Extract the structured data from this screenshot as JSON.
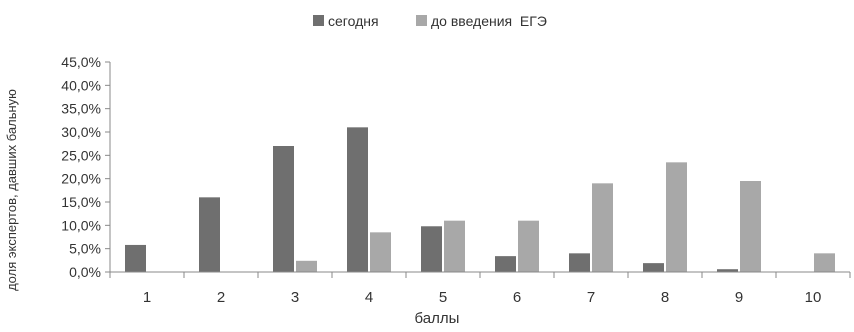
{
  "chart_data": {
    "type": "bar",
    "title": "",
    "xlabel": "баллы",
    "ylabel": "доля экспертов, давших бальную",
    "categories": [
      "1",
      "2",
      "3",
      "4",
      "5",
      "6",
      "7",
      "8",
      "9",
      "10"
    ],
    "series": [
      {
        "name": "сегодня",
        "color": "#6f6f6f",
        "values": [
          5.8,
          16.0,
          27.0,
          31.0,
          9.8,
          3.4,
          4.0,
          1.9,
          0.6,
          0.0
        ]
      },
      {
        "name": "до введения  ЕГЭ",
        "color": "#a8a8a8",
        "values": [
          0.0,
          0.0,
          2.4,
          8.5,
          11.0,
          11.0,
          19.0,
          23.5,
          19.5,
          4.0
        ]
      }
    ],
    "yticks": [
      "0,0%",
      "5,0%",
      "10,0%",
      "15,0%",
      "20,0%",
      "25,0%",
      "30,0%",
      "35,0%",
      "40,0%",
      "45,0%"
    ],
    "ylim": [
      0,
      45
    ],
    "legend_position": "top",
    "grid": false
  }
}
